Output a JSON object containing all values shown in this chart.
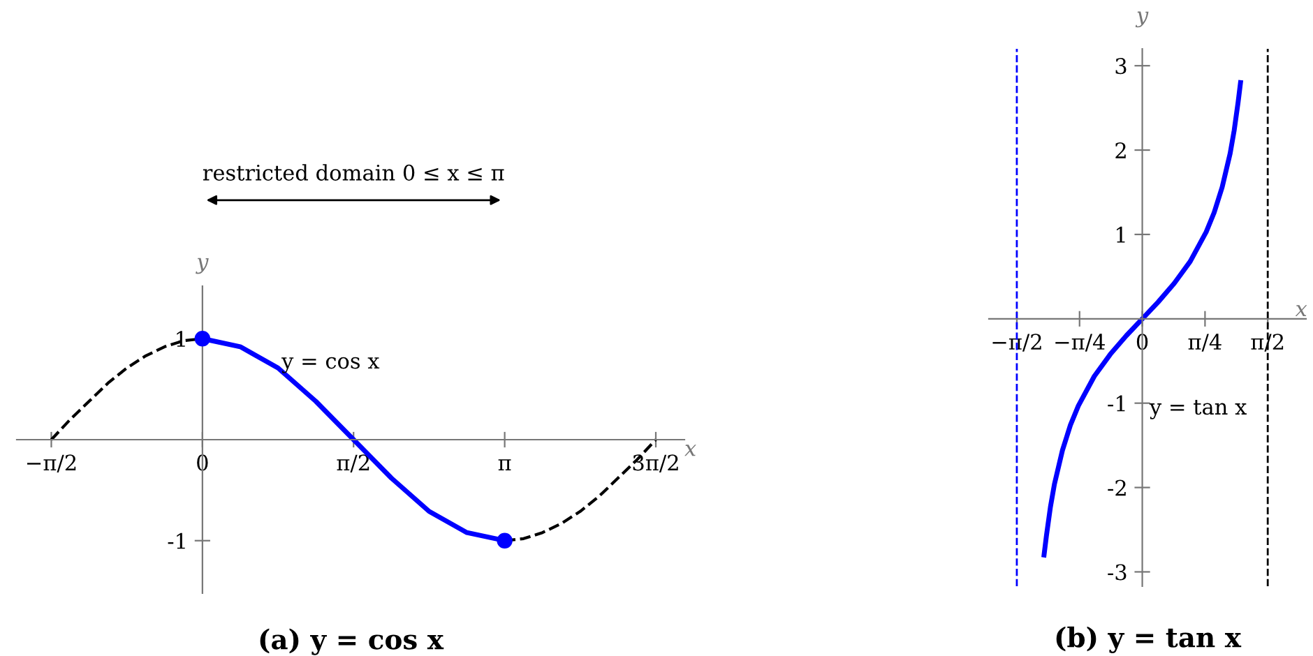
{
  "chart_data": [
    {
      "type": "line",
      "title": "(a) y = cos x",
      "xlabel": "x",
      "ylabel": "y",
      "xlim": [
        -1.93,
        5.01
      ],
      "ylim": [
        -1.52,
        1.52
      ],
      "xticks": [
        {
          "value": -1.5708,
          "label": "−π/2"
        },
        0,
        {
          "value": 1.5708,
          "label": "π/2"
        },
        {
          "value": 3.1416,
          "label": "π"
        },
        {
          "value": 4.7124,
          "label": "3π/2"
        }
      ],
      "yticks": [
        -1,
        1
      ],
      "grid": false,
      "legend": false,
      "annotations": [
        "y = cos x",
        "restricted domain 0 ≤ x ≤ π"
      ],
      "series": [
        {
          "type": "line",
          "color": "#000000",
          "line_style": "dashed",
          "x": [
            -1.5708,
            -1.3744,
            -1.1781,
            -0.9817,
            -0.7854,
            -0.589,
            -0.3927,
            -0.1963,
            0
          ],
          "values": [
            0,
            0.2,
            0.38,
            0.56,
            0.71,
            0.83,
            0.92,
            0.98,
            1
          ]
        },
        {
          "type": "line",
          "color": "#0000ff",
          "line_style": "solid",
          "x": [
            0,
            0.3927,
            0.7854,
            1.1781,
            1.5708,
            1.9635,
            2.3562,
            2.7489,
            3.1416
          ],
          "values": [
            1,
            0.92,
            0.71,
            0.38,
            0,
            -0.38,
            -0.71,
            -0.92,
            -1
          ]
        },
        {
          "type": "line",
          "color": "#000000",
          "line_style": "dashed",
          "x": [
            3.1416,
            3.3379,
            3.5343,
            3.7306,
            3.927,
            4.1233,
            4.3197,
            4.516,
            4.7124
          ],
          "values": [
            -1,
            -0.98,
            -0.92,
            -0.83,
            -0.71,
            -0.56,
            -0.38,
            -0.2,
            0
          ]
        },
        {
          "type": "scatter",
          "color": "#0000ff",
          "marker": "circle",
          "x": [
            0,
            3.1416
          ],
          "values": [
            1,
            -1
          ]
        }
      ]
    },
    {
      "type": "line",
      "title": "(b) y = tan x",
      "xlabel": "x",
      "ylabel": "y",
      "xlim": [
        -1.92,
        2.05
      ],
      "ylim": [
        -3.17,
        3.2
      ],
      "xticks": [
        {
          "value": -1.5708,
          "label": "−π/2"
        },
        {
          "value": -0.7854,
          "label": "−π/4"
        },
        0,
        {
          "value": 0.7854,
          "label": "π/4"
        },
        {
          "value": 1.5708,
          "label": "π/2"
        }
      ],
      "yticks": [
        -3,
        -2,
        -1,
        1,
        2,
        3
      ],
      "grid": false,
      "legend": false,
      "annotations": [
        "y = tan x"
      ],
      "ref_lines": [
        {
          "axis": "x",
          "value": -1.5708,
          "color": "#0000ff",
          "line_style": "dashed"
        },
        {
          "axis": "x",
          "value": 1.5708,
          "color": "#000000",
          "line_style": "dashed"
        }
      ],
      "series": [
        {
          "type": "line",
          "color": "#0000ff",
          "line_style": "solid",
          "x": [
            -1.23,
            -1.2,
            -1.15,
            -1.1,
            -1.0,
            -0.9,
            -0.8,
            -0.6,
            -0.4,
            -0.2,
            0,
            0.2,
            0.4,
            0.6,
            0.8,
            0.9,
            1.0,
            1.1,
            1.15,
            1.2,
            1.23
          ],
          "values": [
            -2.8,
            -2.57,
            -2.23,
            -1.96,
            -1.56,
            -1.26,
            -1.03,
            -0.68,
            -0.42,
            -0.2,
            0,
            0.2,
            0.42,
            0.68,
            1.03,
            1.26,
            1.56,
            1.96,
            2.23,
            2.57,
            2.8
          ]
        }
      ]
    }
  ]
}
